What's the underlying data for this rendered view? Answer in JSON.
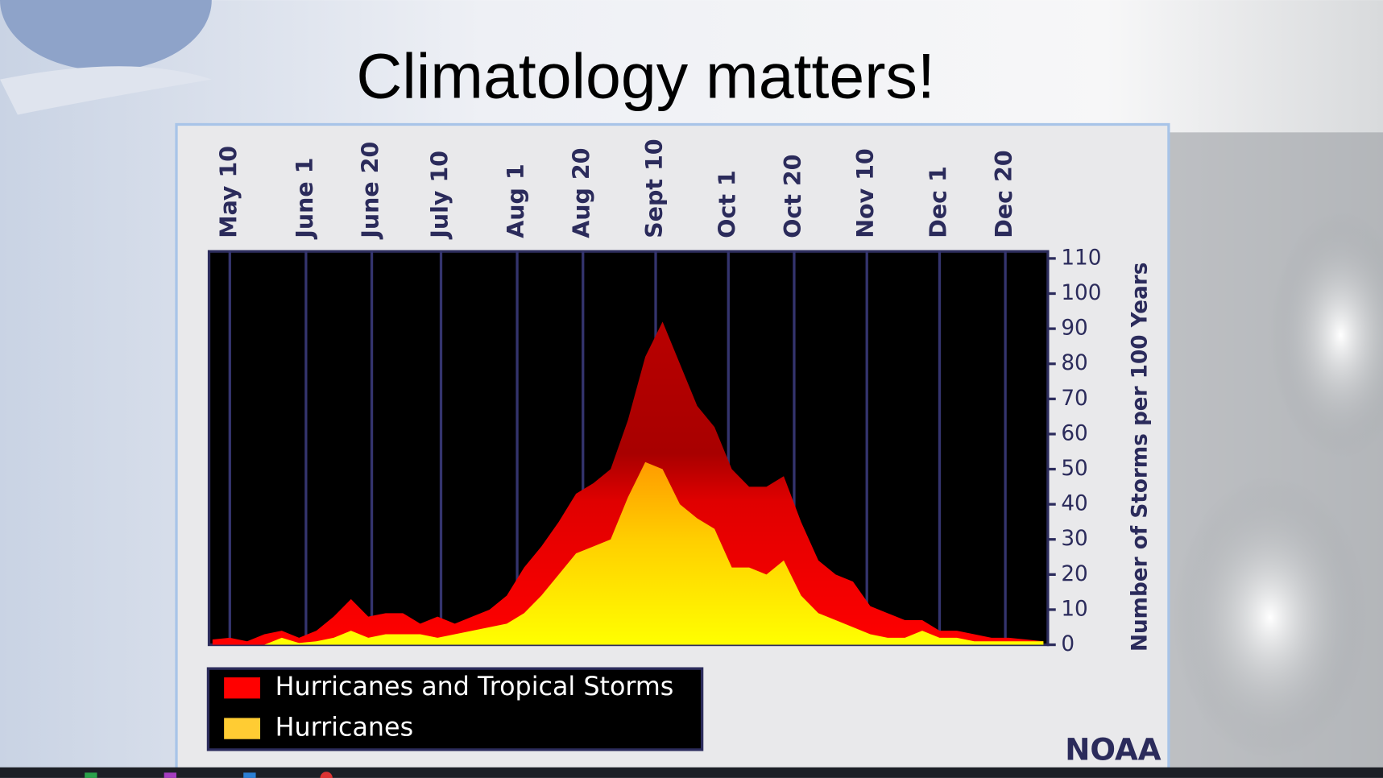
{
  "chart_data": {
    "type": "area",
    "title": "Climatology matters!",
    "y_label": "Number of Storms per 100 Years",
    "source": "NOAA",
    "x": [
      "May 5",
      "May 10",
      "May 15",
      "May 20",
      "May 25",
      "May 30",
      "June 4",
      "June 9",
      "June 14",
      "June 19",
      "June 24",
      "June 29",
      "July 4",
      "July 9",
      "July 14",
      "July 19",
      "July 24",
      "July 29",
      "Aug 3",
      "Aug 8",
      "Aug 13",
      "Aug 18",
      "Aug 23",
      "Aug 28",
      "Sept 2",
      "Sept 7",
      "Sept 12",
      "Sept 17",
      "Sept 22",
      "Sept 27",
      "Oct 2",
      "Oct 7",
      "Oct 12",
      "Oct 17",
      "Oct 22",
      "Oct 27",
      "Nov 1",
      "Nov 6",
      "Nov 11",
      "Nov 16",
      "Nov 21",
      "Nov 26",
      "Dec 1",
      "Dec 6",
      "Dec 11",
      "Dec 16",
      "Dec 21",
      "Dec 26",
      "Dec 31"
    ],
    "xlim": [
      "May 4",
      "Dec 31"
    ],
    "xticks": [
      "May 10",
      "June 1",
      "June 20",
      "July 10",
      "Aug 1",
      "Aug 20",
      "Sept 10",
      "Oct 1",
      "Oct 20",
      "Nov 10",
      "Dec 1",
      "Dec 20"
    ],
    "ylim": [
      0,
      112
    ],
    "yticks": [
      0,
      10,
      20,
      30,
      40,
      50,
      60,
      70,
      80,
      90,
      100,
      110
    ],
    "series": [
      {
        "name": "Hurricanes and Tropical Storms",
        "color": "#ff0000",
        "values": [
          1.5,
          2,
          1,
          3,
          4,
          2,
          4,
          8,
          13,
          8,
          9,
          9,
          6,
          8,
          6,
          8,
          10,
          14,
          22,
          28,
          35,
          43,
          46,
          50,
          64,
          82,
          92,
          80,
          68,
          62,
          50,
          45,
          45,
          48,
          35,
          24,
          20,
          18,
          11,
          9,
          7,
          7,
          4,
          4,
          3,
          2,
          2,
          1.5,
          1
        ]
      },
      {
        "name": "Hurricanes",
        "color": "#ffcc33",
        "values": [
          0,
          0,
          0,
          0,
          2,
          0.5,
          1,
          2,
          4,
          2,
          3,
          3,
          3,
          2,
          3,
          4,
          5,
          6,
          9,
          14,
          20,
          26,
          28,
          30,
          42,
          52,
          50,
          40,
          36,
          33,
          22,
          22,
          20,
          24,
          14,
          9,
          7,
          5,
          3,
          2,
          2,
          4,
          2,
          2,
          1,
          1,
          1,
          1,
          1
        ]
      }
    ]
  }
}
